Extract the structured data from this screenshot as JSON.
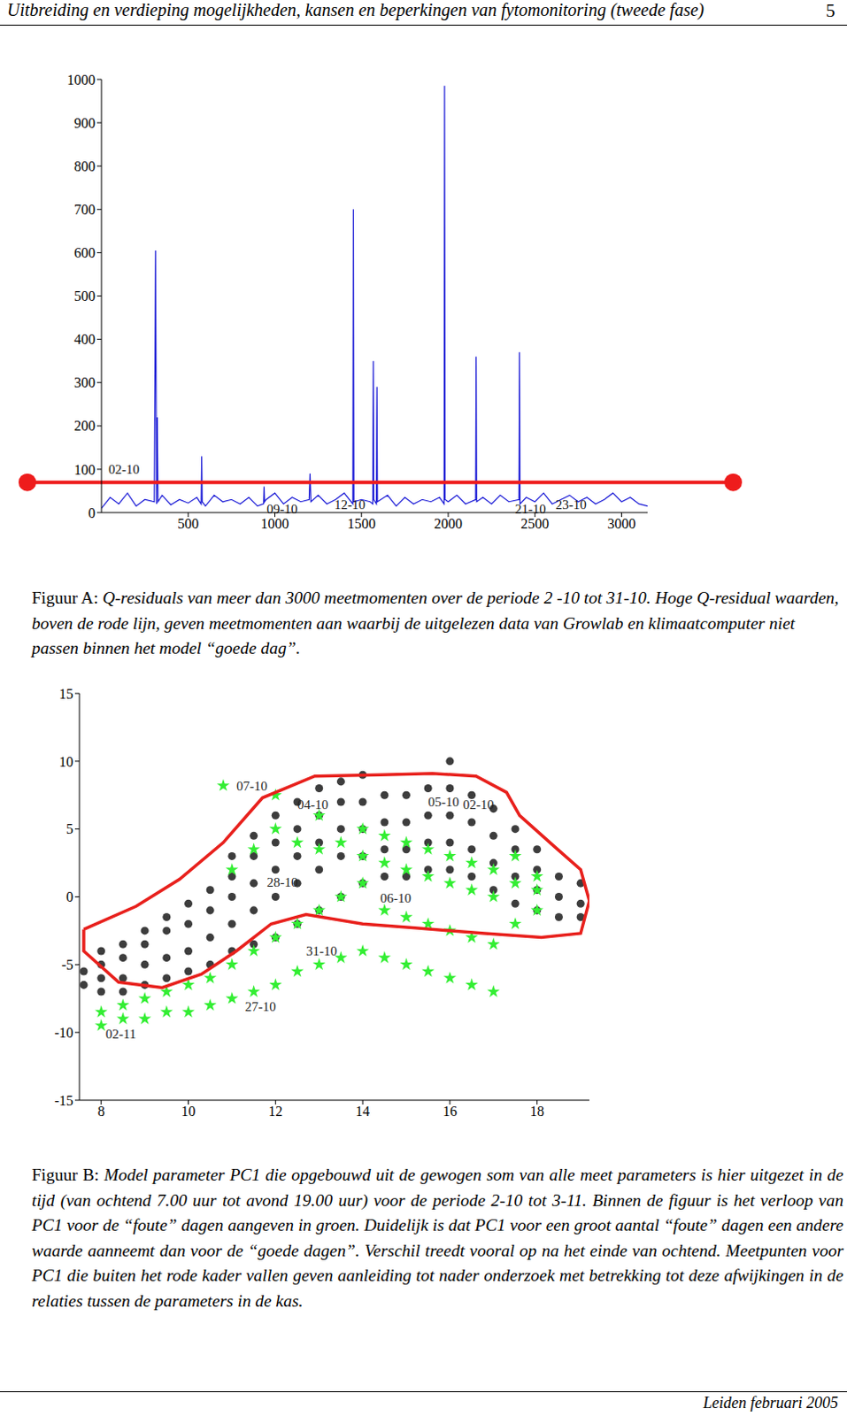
{
  "header": {
    "title": "Uitbreiding en verdieping mogelijkheden, kansen en beperkingen van fytomonitoring (tweede fase)",
    "page_number": 5
  },
  "chart_data": [
    {
      "type": "line",
      "caption_label": "Figuur A:",
      "caption": "Q-residuals van meer dan 3000 meetmomenten over de periode 2 -10 tot 31-10. Hoge Q-residual waarden, boven de rode lijn, geven meetmomenten aan waarbij de uitgelezen data van Growlab en klimaatcomputer niet passen binnen het model “goede dag”.",
      "x": [
        0,
        50,
        100,
        150,
        200,
        250,
        305,
        312,
        318,
        322,
        326,
        350,
        400,
        450,
        500,
        550,
        575,
        578,
        581,
        600,
        650,
        700,
        750,
        800,
        850,
        900,
        935,
        938,
        941,
        950,
        1000,
        1050,
        1100,
        1150,
        1198,
        1203,
        1208,
        1250,
        1300,
        1350,
        1400,
        1450,
        1453,
        1456,
        1500,
        1550,
        1565,
        1568,
        1571,
        1586,
        1589,
        1592,
        1650,
        1700,
        1750,
        1800,
        1850,
        1900,
        1950,
        1976,
        1979,
        1982,
        2000,
        2050,
        2100,
        2158,
        2161,
        2164,
        2200,
        2250,
        2300,
        2350,
        2408,
        2411,
        2414,
        2450,
        2500,
        2550,
        2600,
        2650,
        2700,
        2750,
        2800,
        2850,
        2900,
        2950,
        3000,
        3050,
        3100,
        3150
      ],
      "series": [
        {
          "color": "#1a1ad6",
          "values": [
            10,
            35,
            20,
            45,
            15,
            30,
            25,
            605,
            20,
            220,
            25,
            40,
            18,
            30,
            22,
            35,
            20,
            130,
            25,
            15,
            40,
            25,
            30,
            20,
            35,
            15,
            20,
            60,
            25,
            30,
            45,
            20,
            35,
            25,
            30,
            90,
            25,
            40,
            20,
            30,
            45,
            20,
            700,
            25,
            30,
            25,
            20,
            350,
            30,
            20,
            290,
            25,
            40,
            15,
            35,
            20,
            30,
            25,
            35,
            20,
            985,
            30,
            25,
            40,
            20,
            30,
            360,
            25,
            35,
            20,
            40,
            25,
            30,
            370,
            20,
            35,
            25,
            45,
            20,
            30,
            40,
            25,
            35,
            20,
            30,
            45,
            25,
            35,
            20,
            15
          ]
        }
      ],
      "xlim": [
        0,
        3150
      ],
      "xticks": [
        500,
        1000,
        1500,
        2000,
        2500,
        3000
      ],
      "ylim": [
        0,
        1000
      ],
      "yticks": [
        0,
        100,
        200,
        300,
        400,
        500,
        600,
        700,
        800,
        900,
        1000
      ],
      "threshold": {
        "value": 70,
        "color": "#ee1c1c"
      },
      "annotations": [
        {
          "text": "02-10",
          "x": 15,
          "y": 100
        },
        {
          "text": "09-10",
          "x": 927,
          "y": 8
        },
        {
          "text": "12-10",
          "x": 1318,
          "y": 18
        },
        {
          "text": "21-10",
          "x": 2360,
          "y": 8
        },
        {
          "text": "23-10",
          "x": 2594,
          "y": 18
        }
      ]
    },
    {
      "type": "scatter",
      "caption_label": "Figuur B:",
      "caption": "Model parameter PC1 die opgebouwd uit de gewogen som van alle meet parameters is hier uitgezet in de tijd (van ochtend 7.00 uur tot avond 19.00 uur) voor de periode 2-10 tot 3-11. Binnen de figuur is het verloop van PC1 voor de “foute” dagen aangeven in groen. Duidelijk is dat PC1 voor een groot aantal “foute” dagen een andere waarde aanneemt dan voor de “goede dagen”. Verschil treedt vooral op na het einde van ochtend. Meetpunten voor PC1 die buiten het rode kader vallen geven aanleiding tot nader onderzoek met betrekking tot deze afwijkingen in de relaties tussen de parameters in de kas.",
      "series": [
        {
          "color": "#3d3d3d",
          "marker": "circle",
          "x": [
            7.6,
            7.6,
            8,
            8,
            8,
            8,
            8.5,
            8.5,
            8.5,
            8.5,
            9,
            9,
            9,
            9,
            9.5,
            9.5,
            9.5,
            9.5,
            10,
            10,
            10,
            10,
            10.5,
            10.5,
            10.5,
            10.5,
            11,
            11,
            11,
            11,
            11,
            11.5,
            11.5,
            11.5,
            11.5,
            11.5,
            12,
            12,
            12,
            12,
            12,
            12.5,
            12.5,
            12.5,
            12.5,
            12.5,
            13,
            13,
            13,
            13,
            13,
            13.5,
            13.5,
            13.5,
            13.5,
            13.5,
            14,
            14,
            14,
            14,
            14,
            14.5,
            14.5,
            14.5,
            14.5,
            15,
            15,
            15,
            15,
            15.5,
            15.5,
            15.5,
            15.5,
            16,
            16,
            16,
            16,
            16,
            16.5,
            16.5,
            16.5,
            16.5,
            17,
            17,
            17,
            17,
            17.5,
            17.5,
            17.5,
            17.5,
            18,
            18,
            18,
            18,
            18.5,
            18.5,
            18.5,
            19,
            19,
            19
          ],
          "values": [
            -6.5,
            -5.5,
            -7,
            -6,
            -5,
            -4,
            -7,
            -6,
            -4.5,
            -3.5,
            -6.5,
            -5,
            -3.5,
            -2.5,
            -6,
            -4.5,
            -2.5,
            -1.5,
            -5.5,
            -4,
            -2,
            -0.5,
            -5,
            -3,
            -1,
            0.5,
            -4,
            -2,
            0,
            1.5,
            3,
            -3.5,
            -1,
            1,
            3,
            4.5,
            -3,
            0,
            2,
            4,
            6,
            -2,
            1,
            3,
            5,
            7,
            -1,
            2,
            4,
            6,
            8,
            0,
            3,
            5,
            7,
            8.5,
            1,
            3,
            5,
            7,
            9,
            1.5,
            3.5,
            5.5,
            7.5,
            1.5,
            3.5,
            5.5,
            7.5,
            2,
            4,
            6,
            8,
            2,
            4,
            6,
            8,
            10,
            1.5,
            3.5,
            5.5,
            7.5,
            0.5,
            2.5,
            4.5,
            6.5,
            -0.5,
            1.5,
            3.5,
            5,
            -1,
            0.5,
            2,
            3.5,
            -1.5,
            0,
            1.5,
            -1.5,
            -0.5,
            1
          ]
        },
        {
          "color": "#33ee33",
          "marker": "star",
          "x": [
            8,
            8,
            8.5,
            8.5,
            9,
            9,
            9.5,
            9.5,
            10,
            10,
            10.5,
            10.5,
            10.8,
            11,
            11,
            11,
            11.5,
            11.5,
            11.5,
            12,
            12,
            12,
            12,
            12.5,
            12.5,
            12.5,
            13,
            13,
            13,
            13,
            13.5,
            13.5,
            13.5,
            14,
            14,
            14,
            14,
            14.5,
            14.5,
            14.5,
            14.5,
            15,
            15,
            15,
            15,
            15.5,
            15.5,
            15.5,
            15.5,
            16,
            16,
            16,
            16,
            16.5,
            16.5,
            16.5,
            16.5,
            17,
            17,
            17,
            17,
            17.5,
            17.5,
            17.5,
            18,
            18,
            18
          ],
          "values": [
            -9.5,
            -8.5,
            -9,
            -8,
            -9,
            -7.5,
            -8.5,
            -7,
            -8.5,
            -6.5,
            -8,
            -6,
            8.2,
            -7.5,
            -5,
            2,
            -7,
            -4,
            3.5,
            -6.5,
            -3,
            5,
            7.5,
            -5.5,
            -2,
            4,
            -5,
            -1,
            3.5,
            6,
            -4.5,
            0,
            4,
            -4,
            1,
            3,
            5,
            -4.5,
            -1,
            2.5,
            4.5,
            -5,
            -1.5,
            2,
            4,
            -5.5,
            -2,
            1.5,
            3.5,
            -6,
            -2.5,
            1,
            3,
            -6.5,
            -3,
            0.5,
            2.5,
            -7,
            -3.5,
            0,
            2,
            -2,
            1,
            3,
            -1,
            0.5,
            1.5
          ]
        }
      ],
      "outline": {
        "color": "#e8201c",
        "x": [
          7.6,
          8.8,
          9.8,
          10.8,
          11.7,
          12.9,
          14.4,
          15.6,
          16.6,
          17.3,
          17.6,
          18.4,
          19.0,
          19.2,
          19.0,
          18.1,
          16.8,
          15.2,
          14.0,
          12.7,
          11.9,
          11.1,
          10.3,
          9.4,
          8.4,
          7.6,
          7.6
        ],
        "y": [
          -2.4,
          -0.7,
          1.3,
          4,
          7.3,
          8.9,
          9,
          9.1,
          8.9,
          7.7,
          6,
          3.7,
          2,
          -0.3,
          -2.7,
          -3,
          -2.7,
          -2.3,
          -2,
          -1.3,
          -2,
          -4,
          -5.7,
          -6.7,
          -6.3,
          -4,
          -2.4
        ]
      },
      "xlim": [
        7.5,
        19.2
      ],
      "xticks": [
        8,
        10,
        12,
        14,
        16,
        18
      ],
      "ylim": [
        -15,
        15
      ],
      "yticks": [
        -15,
        -10,
        -5,
        0,
        5,
        10,
        15
      ],
      "annotations": [
        {
          "text": "07-10",
          "x": 11.0,
          "y": 8.2
        },
        {
          "text": "04-10",
          "x": 12.4,
          "y": 6.8
        },
        {
          "text": "05-10",
          "x": 15.4,
          "y": 7
        },
        {
          "text": "02-10",
          "x": 16.2,
          "y": 6.8
        },
        {
          "text": "28-10",
          "x": 11.7,
          "y": 1.1
        },
        {
          "text": "06-10",
          "x": 14.3,
          "y": -0.1
        },
        {
          "text": "31-10",
          "x": 12.6,
          "y": -4
        },
        {
          "text": "27-10",
          "x": 11.2,
          "y": -8.1
        },
        {
          "text": "02-11",
          "x": 8.0,
          "y": -10.1
        }
      ]
    }
  ],
  "footer": "Leiden februari 2005"
}
